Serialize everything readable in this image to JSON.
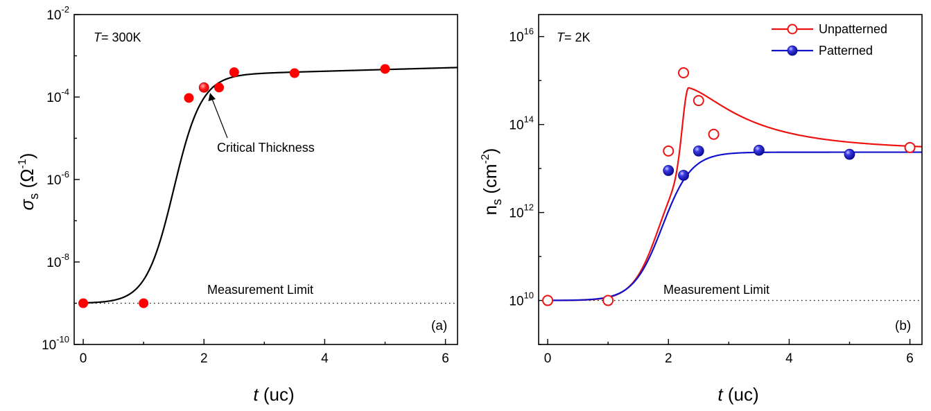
{
  "chart_data": [
    {
      "panel": "(a)",
      "type": "scatter",
      "temperature_prefix": "T",
      "temperature_value": "= 300K",
      "xlabel_italic": "t",
      "xlabel_rest": " (uc)",
      "ylabel_symbol": "σ",
      "ylabel_subscript": "s",
      "ylabel_unit_open": " (Ω",
      "ylabel_unit_sup": "-1",
      "ylabel_unit_close": ")",
      "xlim": [
        -0.15,
        6.2
      ],
      "ylim_log10": [
        -10,
        -2
      ],
      "y_scale": "log",
      "xticks": [
        0,
        2,
        4,
        6
      ],
      "xtick_labels": [
        "0",
        "2",
        "4",
        "6"
      ],
      "yticks_log10": [
        -10,
        -8,
        -6,
        -4,
        -2
      ],
      "ytick_labels": [
        {
          "base": "10",
          "exp": "-10"
        },
        {
          "base": "10",
          "exp": "-8"
        },
        {
          "base": "10",
          "exp": "-6"
        },
        {
          "base": "10",
          "exp": "-4"
        },
        {
          "base": "10",
          "exp": "-2"
        }
      ],
      "measurement_limit_label": "Measurement Limit",
      "measurement_limit_value": 1e-09,
      "critical_thickness_label": "Critical Thickness",
      "critical_thickness_x": 2,
      "series": [
        {
          "marker": "filled-circle",
          "color": "#ff0000",
          "x": [
            0,
            1,
            1.75,
            2,
            2.25,
            2.5,
            3.5,
            5
          ],
          "y": [
            1e-09,
            1e-09,
            9.5e-05,
            0.00017,
            0.00017,
            0.0004,
            0.00038,
            0.00048
          ]
        }
      ],
      "fit": {
        "color": "#000000",
        "model": "log-sigmoid",
        "base": 1e-09,
        "plateau_min": 0.00035,
        "plateau_max": 0.00052,
        "center": 1.5,
        "width": 0.23
      }
    },
    {
      "panel": "(b)",
      "type": "scatter",
      "temperature_prefix": "T",
      "temperature_value": "= 2K",
      "xlabel_italic": "t",
      "xlabel_rest": " (uc)",
      "ylabel_main": "n",
      "ylabel_subscript": "s",
      "ylabel_unit_open": " (cm",
      "ylabel_unit_sup": "-2",
      "ylabel_unit_close": ")",
      "xlim": [
        -0.15,
        6.2
      ],
      "ylim_log10": [
        9,
        16.5
      ],
      "y_scale": "log",
      "xticks": [
        0,
        2,
        4,
        6
      ],
      "xtick_labels": [
        "0",
        "2",
        "4",
        "6"
      ],
      "yticks_log10": [
        10,
        12,
        14,
        16
      ],
      "ytick_labels": [
        {
          "base": "10",
          "exp": "10"
        },
        {
          "base": "10",
          "exp": "12"
        },
        {
          "base": "10",
          "exp": "14"
        },
        {
          "base": "10",
          "exp": "16"
        }
      ],
      "legend_position": "top-right",
      "measurement_limit_label": "Measurement Limit",
      "measurement_limit_value": 10000000000.0,
      "series": [
        {
          "name": "Unpatterned",
          "marker": "open-circle",
          "color": "#ee1111",
          "x": [
            0,
            1,
            2,
            2.25,
            2.5,
            2.75,
            6
          ],
          "y": [
            10000000000.0,
            10000000000.0,
            25000000000000.0,
            1500000000000000.0,
            350000000000000.0,
            60000000000000.0,
            30000000000000.0
          ]
        },
        {
          "name": "Patterned",
          "marker": "filled-sphere",
          "color": "#1010dd",
          "x": [
            2,
            2.25,
            2.5,
            3.5,
            5
          ],
          "y": [
            9000000000000.0,
            7000000000000.0,
            25000000000000.0,
            26000000000000.0,
            21000000000000.0
          ]
        }
      ],
      "fits": [
        {
          "series": "Unpatterned",
          "color": "#ee1111",
          "base": 10000000000.0,
          "plateau": 24000000000000.0,
          "center": 1.85,
          "width": 0.22,
          "peak_log_add": 1.45,
          "peak_center": 2.33,
          "peak_rise": 0.12,
          "peak_decay": 0.9,
          "slow_log_add": 0.35,
          "slow_decay": 3.0
        },
        {
          "series": "Patterned",
          "color": "#1111cc",
          "base": 10000000000.0,
          "plateau": 23500000000000.0,
          "center": 1.9,
          "width": 0.24
        }
      ]
    }
  ]
}
